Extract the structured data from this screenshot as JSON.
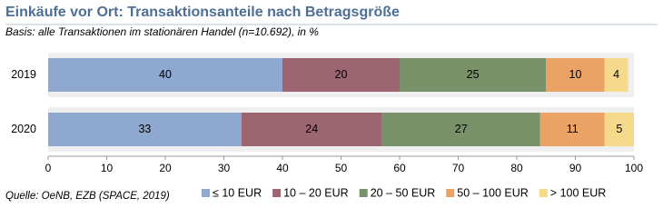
{
  "chart_data": {
    "type": "bar",
    "orientation": "horizontal",
    "stacked": true,
    "title": "Einkäufe vor Ort: Transaktionsanteile nach Betragsgröße",
    "subtitle": "Basis: alle Transaktionen im stationären Handel (n=10.692), in %",
    "source": "Quelle: OeNB, EZB (SPACE, 2019)",
    "categories": [
      "2019",
      "2020"
    ],
    "series": [
      {
        "name": "≤ 10 EUR",
        "color": "#8fa8cf",
        "values": [
          40,
          33
        ]
      },
      {
        "name": "10 – 20 EUR",
        "color": "#9d6572",
        "values": [
          20,
          24
        ]
      },
      {
        "name": "20 – 50 EUR",
        "color": "#789169",
        "values": [
          25,
          27
        ]
      },
      {
        "name": "50 – 100 EUR",
        "color": "#eba265",
        "values": [
          10,
          11
        ]
      },
      {
        "name": "> 100 EUR",
        "color": "#f6da8c",
        "values": [
          4,
          5
        ]
      }
    ],
    "xlim": [
      0,
      100
    ],
    "xticks": [
      0,
      10,
      20,
      30,
      40,
      50,
      60,
      70,
      80,
      90,
      100
    ]
  }
}
